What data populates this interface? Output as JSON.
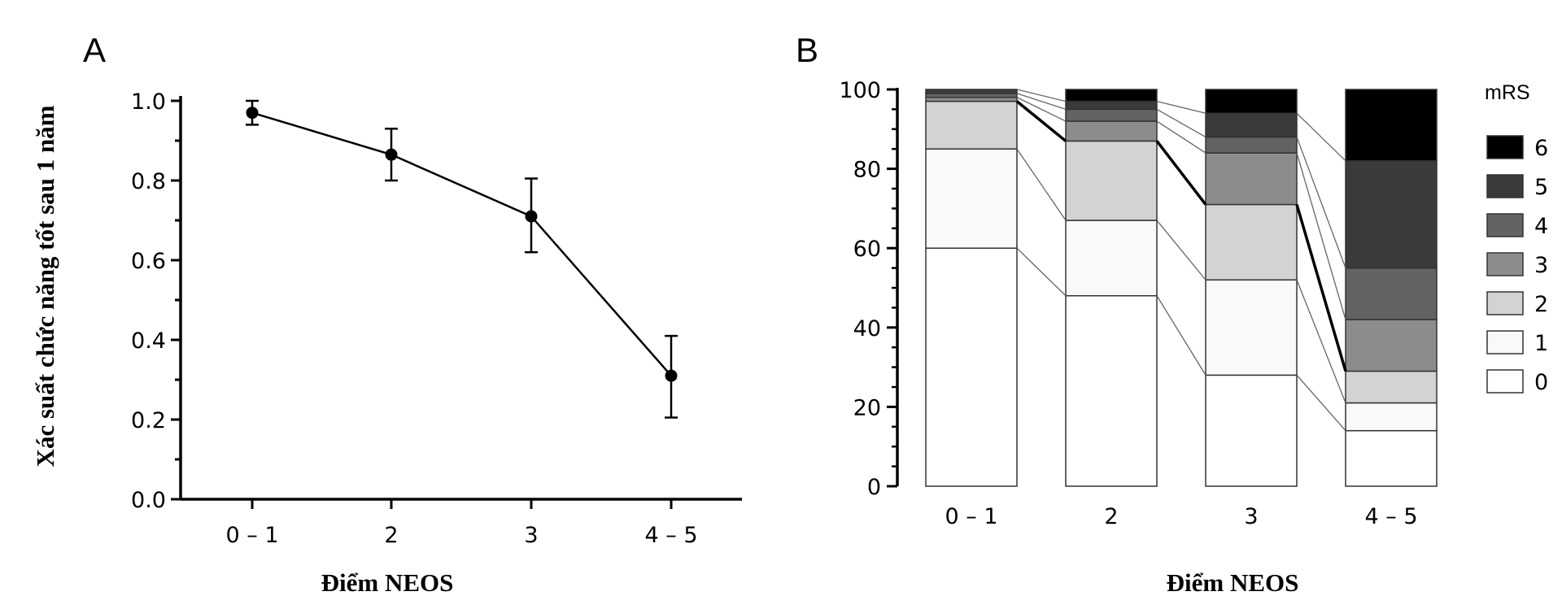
{
  "chart_data": [
    {
      "panel": "A",
      "type": "line",
      "xlabel": "Điểm NEOS",
      "ylabel": "Xác suất chức năng tốt sau 1 năm",
      "categories": [
        "0 – 1",
        "2",
        "3",
        "4 – 5"
      ],
      "values": [
        0.97,
        0.865,
        0.71,
        0.31
      ],
      "error_low": [
        0.94,
        0.8,
        0.62,
        0.205
      ],
      "error_high": [
        1.0,
        0.93,
        0.805,
        0.41
      ],
      "yticks": [
        "0.0",
        "0.2",
        "0.4",
        "0.6",
        "0.8",
        "1.0"
      ],
      "ylim": [
        0,
        1
      ],
      "grid": false
    },
    {
      "panel": "B",
      "type": "bar",
      "stacked": true,
      "xlabel": "Điểm NEOS",
      "categories": [
        "0 – 1",
        "2",
        "3",
        "4 – 5"
      ],
      "yticks": [
        "0",
        "20",
        "40",
        "60",
        "80",
        "100"
      ],
      "ylim": [
        0,
        100
      ],
      "legend_title": "mRS",
      "legend_position": "right",
      "series": [
        {
          "name": "0",
          "color": "#ffffff",
          "values": [
            60,
            48,
            28,
            14
          ]
        },
        {
          "name": "1",
          "color": "#f9f9f9",
          "values": [
            25,
            19,
            24,
            7
          ]
        },
        {
          "name": "2",
          "color": "#d3d3d3",
          "values": [
            12,
            20,
            19,
            8
          ]
        },
        {
          "name": "3",
          "color": "#8c8c8c",
          "values": [
            1,
            5,
            13,
            13
          ]
        },
        {
          "name": "4",
          "color": "#636363",
          "values": [
            1,
            3,
            4,
            13
          ]
        },
        {
          "name": "5",
          "color": "#3a3a3a",
          "values": [
            1,
            2,
            6,
            27
          ]
        },
        {
          "name": "6",
          "color": "#000000",
          "values": [
            0,
            3,
            6,
            18
          ]
        }
      ],
      "highlight_boundary_after_series": "2",
      "grid": false
    }
  ]
}
